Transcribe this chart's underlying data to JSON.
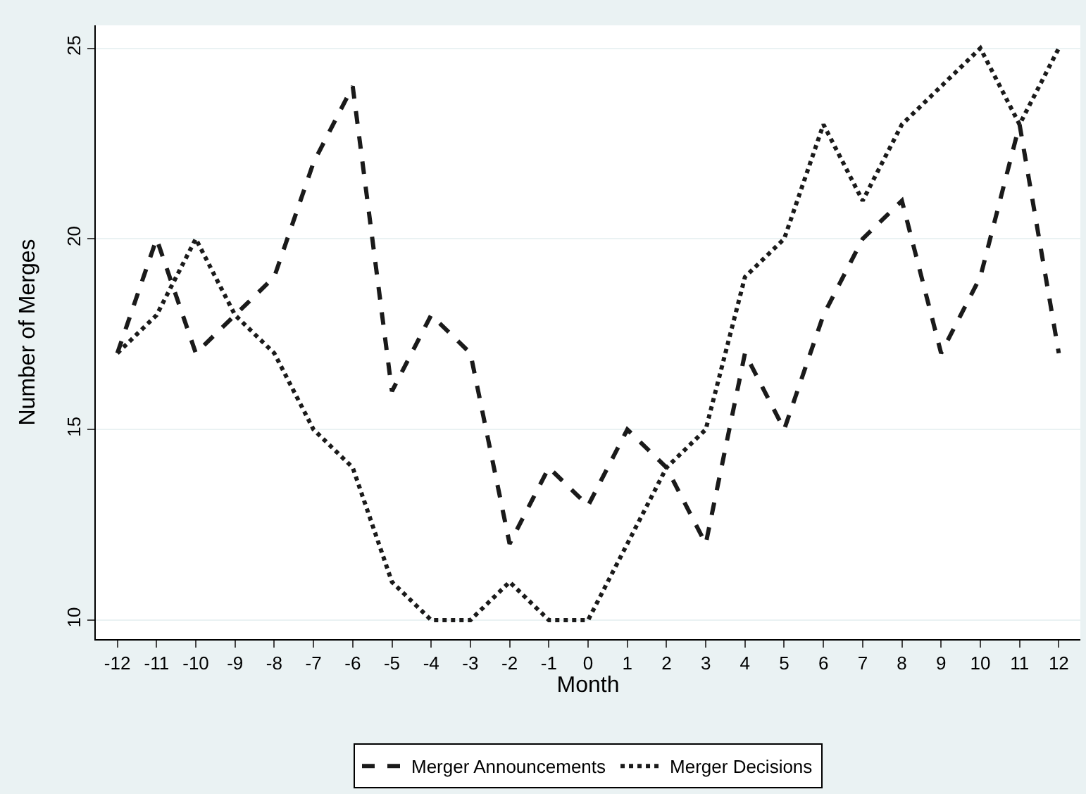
{
  "chart_data": {
    "type": "line",
    "xlabel": "Month",
    "ylabel": "Number of Merges",
    "x": [
      -12,
      -11,
      -10,
      -9,
      -8,
      -7,
      -6,
      -5,
      -4,
      -3,
      -2,
      -1,
      0,
      1,
      2,
      3,
      4,
      5,
      6,
      7,
      8,
      9,
      10,
      11,
      12
    ],
    "series": [
      {
        "name": "Merger Announcements",
        "color": "#1a1a1a",
        "line_style": "dashed",
        "values": [
          17,
          20,
          17,
          18,
          19,
          22,
          24,
          16,
          18,
          17,
          12,
          14,
          13,
          15,
          14,
          12,
          17,
          15,
          18,
          20,
          21,
          17,
          19,
          23,
          17
        ]
      },
      {
        "name": "Merger Decisions",
        "color": "#1a1a1a",
        "line_style": "dotted",
        "values": [
          17,
          18,
          20,
          18,
          17,
          15,
          14,
          11,
          10,
          10,
          11,
          10,
          10,
          12,
          14,
          15,
          19,
          20,
          23,
          21,
          23,
          24,
          25,
          23,
          25
        ]
      }
    ],
    "xlim": [
      -12.55,
      12.55
    ],
    "xticks": [
      -12,
      -11,
      -10,
      -9,
      -8,
      -7,
      -6,
      -5,
      -4,
      -3,
      -2,
      -1,
      0,
      1,
      2,
      3,
      4,
      5,
      6,
      7,
      8,
      9,
      10,
      11,
      12
    ],
    "ylim": [
      9.5,
      25.6
    ],
    "yticks": [
      10,
      15,
      20,
      25
    ],
    "grid": "y",
    "legend": "bottom",
    "marker": "none"
  }
}
